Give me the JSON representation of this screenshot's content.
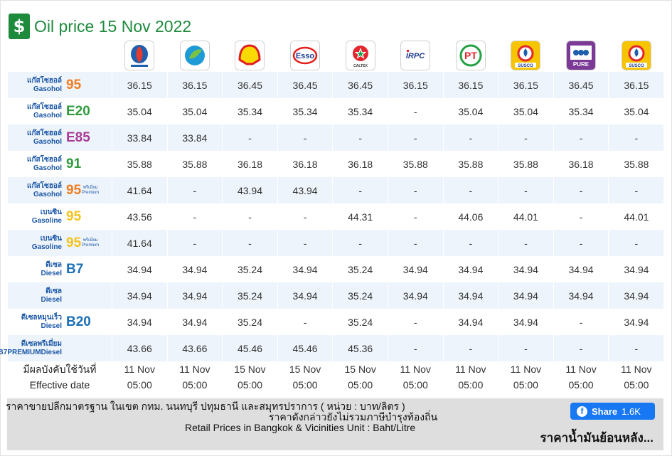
{
  "header": {
    "title": "Oil price 15 Nov 2022",
    "icon": "fuel-pump-money-icon"
  },
  "brands": [
    {
      "key": "ptt",
      "icon": "ptt-logo",
      "label": ""
    },
    {
      "key": "bangchak",
      "icon": "bangchak-logo",
      "label": ""
    },
    {
      "key": "shell",
      "icon": "shell-logo",
      "label": ""
    },
    {
      "key": "esso",
      "icon": "esso-logo",
      "label": "Esso"
    },
    {
      "key": "caltex",
      "icon": "caltex-logo",
      "label": "CALTEX"
    },
    {
      "key": "irpc",
      "icon": "irpc-logo",
      "label": "IRPC"
    },
    {
      "key": "pt",
      "icon": "pt-logo",
      "label": "PT"
    },
    {
      "key": "susco1",
      "icon": "susco-logo",
      "label": "SUSCO"
    },
    {
      "key": "pure",
      "icon": "pure-logo",
      "label": "PURE"
    },
    {
      "key": "susco2",
      "icon": "susco-logo",
      "label": "SUSCO"
    }
  ],
  "fuels": [
    {
      "thai": "แก๊สโซฮอล์",
      "eng": "Gasohol",
      "grade": "95",
      "grade_color": "#f07d22",
      "premium": false,
      "prices": [
        "36.15",
        "36.15",
        "36.45",
        "36.45",
        "36.45",
        "36.15",
        "36.15",
        "36.15",
        "36.45",
        "36.15"
      ]
    },
    {
      "thai": "แก๊สโซฮอล์",
      "eng": "Gasohol",
      "grade": "E20",
      "grade_color": "#2f9a3d",
      "premium": false,
      "prices": [
        "35.04",
        "35.04",
        "35.34",
        "35.34",
        "35.34",
        "-",
        "35.04",
        "35.04",
        "35.34",
        "35.04"
      ]
    },
    {
      "thai": "แก๊สโซฮอล์",
      "eng": "Gasohol",
      "grade": "E85",
      "grade_color": "#a83c97",
      "premium": false,
      "prices": [
        "33.84",
        "33.84",
        "-",
        "-",
        "-",
        "-",
        "-",
        "-",
        "-",
        "-"
      ]
    },
    {
      "thai": "แก๊สโซฮอล์",
      "eng": "Gasohol",
      "grade": "91",
      "grade_color": "#2f9a3d",
      "premium": false,
      "prices": [
        "35.88",
        "35.88",
        "36.18",
        "36.18",
        "36.18",
        "35.88",
        "35.88",
        "35.88",
        "36.18",
        "35.88"
      ]
    },
    {
      "thai": "แก๊สโซฮอล์",
      "eng": "Gasohol",
      "grade": "95",
      "grade_color": "#f07d22",
      "premium": true,
      "premium_thai": "พรีเมี่ยม",
      "premium_eng": "Premium",
      "prices": [
        "41.64",
        "-",
        "43.94",
        "43.94",
        "-",
        "-",
        "-",
        "-",
        "-",
        "-"
      ]
    },
    {
      "thai": "เบนซิน",
      "eng": "Gasoline",
      "grade": "95",
      "grade_color": "#f4c31c",
      "premium": false,
      "prices": [
        "43.56",
        "-",
        "-",
        "-",
        "44.31",
        "-",
        "44.06",
        "44.01",
        "-",
        "44.01"
      ]
    },
    {
      "thai": "เบนซิน",
      "eng": "Gasoline",
      "grade": "95",
      "grade_color": "#f4c31c",
      "premium": true,
      "premium_thai": "พรีเมี่ยม",
      "premium_eng": "Premium",
      "prices": [
        "41.64",
        "-",
        "-",
        "-",
        "-",
        "-",
        "-",
        "-",
        "-",
        "-"
      ]
    },
    {
      "thai": "ดีเซล",
      "eng": "Diesel",
      "grade": "B7",
      "grade_color": "#1b6fb5",
      "premium": false,
      "prices": [
        "34.94",
        "34.94",
        "35.24",
        "34.94",
        "35.24",
        "34.94",
        "34.94",
        "34.94",
        "34.94",
        "34.94"
      ]
    },
    {
      "thai": "ดีเซล",
      "eng": "Diesel",
      "grade": "",
      "grade_color": "#1b6fb5",
      "premium": false,
      "prices": [
        "34.94",
        "34.94",
        "35.24",
        "34.94",
        "35.24",
        "34.94",
        "34.94",
        "34.94",
        "34.94",
        "34.94"
      ]
    },
    {
      "thai": "ดีเซลหมุนเร็ว",
      "eng": "Diesel",
      "grade": "B20",
      "grade_color": "#1b6fb5",
      "premium": false,
      "prices": [
        "34.94",
        "34.94",
        "35.24",
        "-",
        "35.24",
        "-",
        "34.94",
        "34.94",
        "-",
        "34.94"
      ]
    },
    {
      "thai": "ดีเซลพรีเมี่ยม",
      "eng": "B7PREMIUMDiesel",
      "grade": "",
      "grade_color": "#1b6fb5",
      "premium": false,
      "prices": [
        "43.66",
        "43.66",
        "45.46",
        "45.46",
        "45.36",
        "-",
        "-",
        "-",
        "-",
        "-"
      ]
    }
  ],
  "effective": {
    "label_thai": "มีผลบังคับใช้วันที่",
    "label_eng": "Effective date",
    "dates": [
      "11 Nov",
      "11 Nov",
      "15 Nov",
      "15 Nov",
      "15 Nov",
      "11 Nov",
      "11 Nov",
      "11 Nov",
      "11 Nov",
      "11 Nov"
    ],
    "times": [
      "05:00",
      "05:00",
      "05:00",
      "05:00",
      "05:00",
      "05:00",
      "05:00",
      "05:00",
      "05:00",
      "05:00"
    ]
  },
  "footer": {
    "line1": "ราคาขายปลีกมาตรฐาน ในเขต กทม. นนทบุรี ปทุมธานี และสมุทรปราการ ( หน่วย : บาท/ลิตร )",
    "line2": "ราคาดังกล่าวยังไม่รวมภาษีบำรุงท้องถิ่น",
    "line3": "Retail Prices in Bangkok & Vicinities Unit : Baht/Litre",
    "share_label": "Share",
    "share_count": "1.6K",
    "back_link": "ราคาน้ำมันย้อนหลัง..."
  }
}
